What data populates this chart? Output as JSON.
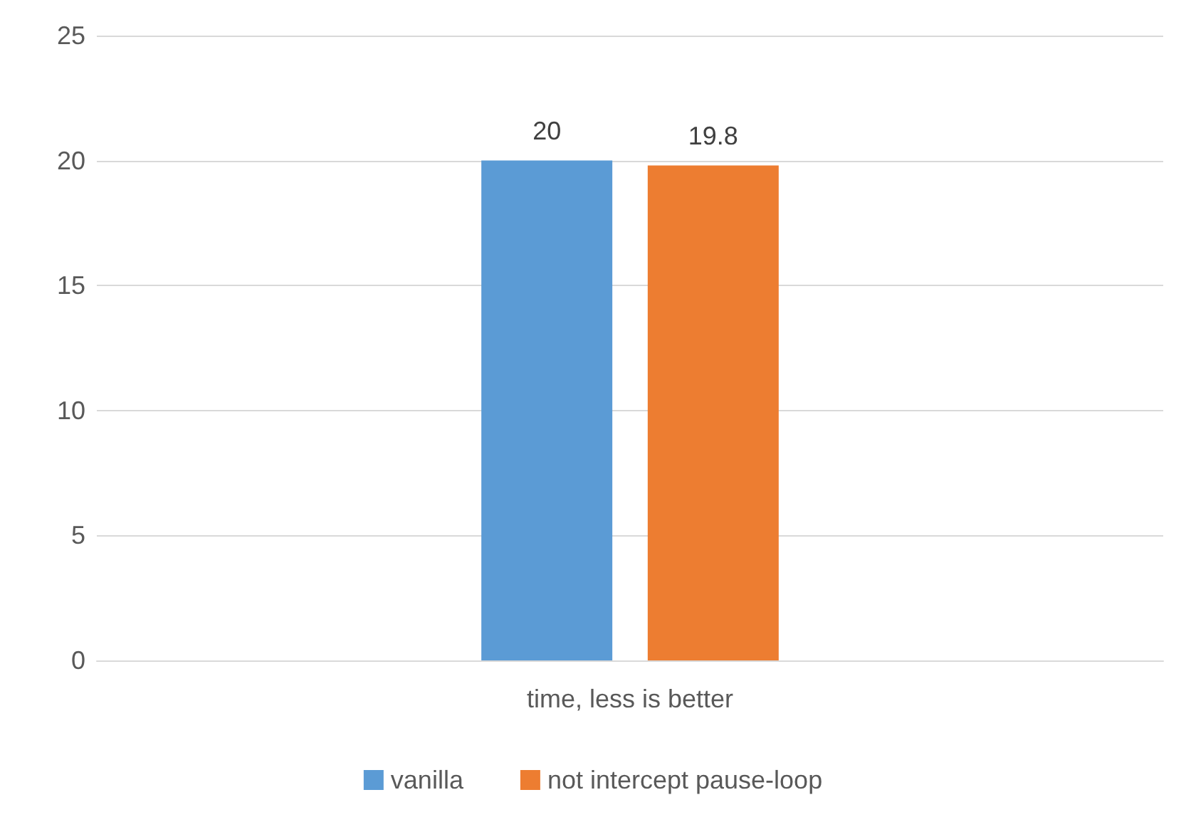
{
  "chart_data": {
    "type": "bar",
    "categories": [
      "time, less is better"
    ],
    "series": [
      {
        "name": "vanilla",
        "color": "#5b9bd5",
        "values": [
          20
        ]
      },
      {
        "name": "not intercept pause-loop",
        "color": "#ed7d31",
        "values": [
          19.8
        ]
      }
    ],
    "ylim": [
      0,
      25
    ],
    "yticks": [
      0,
      5,
      10,
      15,
      20,
      25
    ],
    "grid": "y",
    "legend": "bottom",
    "data_labels": true
  }
}
